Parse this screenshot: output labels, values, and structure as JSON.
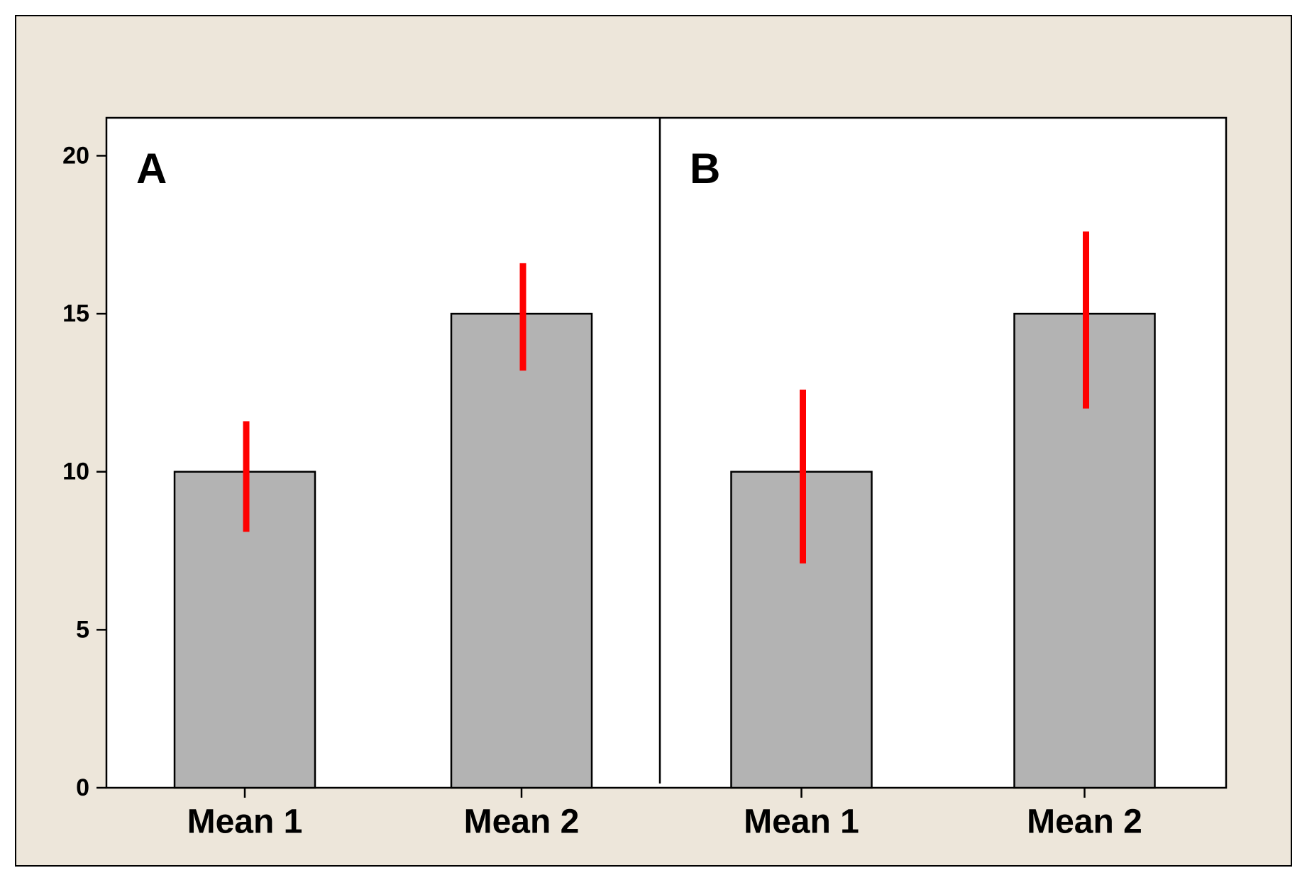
{
  "chart_data": {
    "type": "bar",
    "background_color": "#EDE6DA",
    "plot_background": "#FFFFFF",
    "bar_color": "#B3B3B3",
    "error_bar_color": "#FF0000",
    "y_ticks": [
      "0",
      "5",
      "10",
      "15",
      "20"
    ],
    "ylim": [
      0,
      21.2
    ],
    "grid": false,
    "panels": [
      {
        "label": "A",
        "categories": [
          "Mean 1",
          "Mean 2"
        ],
        "values": [
          10,
          15
        ],
        "error_low": [
          8.1,
          13.2
        ],
        "error_high": [
          11.6,
          16.6
        ]
      },
      {
        "label": "B",
        "categories": [
          "Mean 1",
          "Mean 2"
        ],
        "values": [
          10,
          15
        ],
        "error_low": [
          7.1,
          12.0
        ],
        "error_high": [
          12.6,
          17.6
        ]
      }
    ]
  }
}
